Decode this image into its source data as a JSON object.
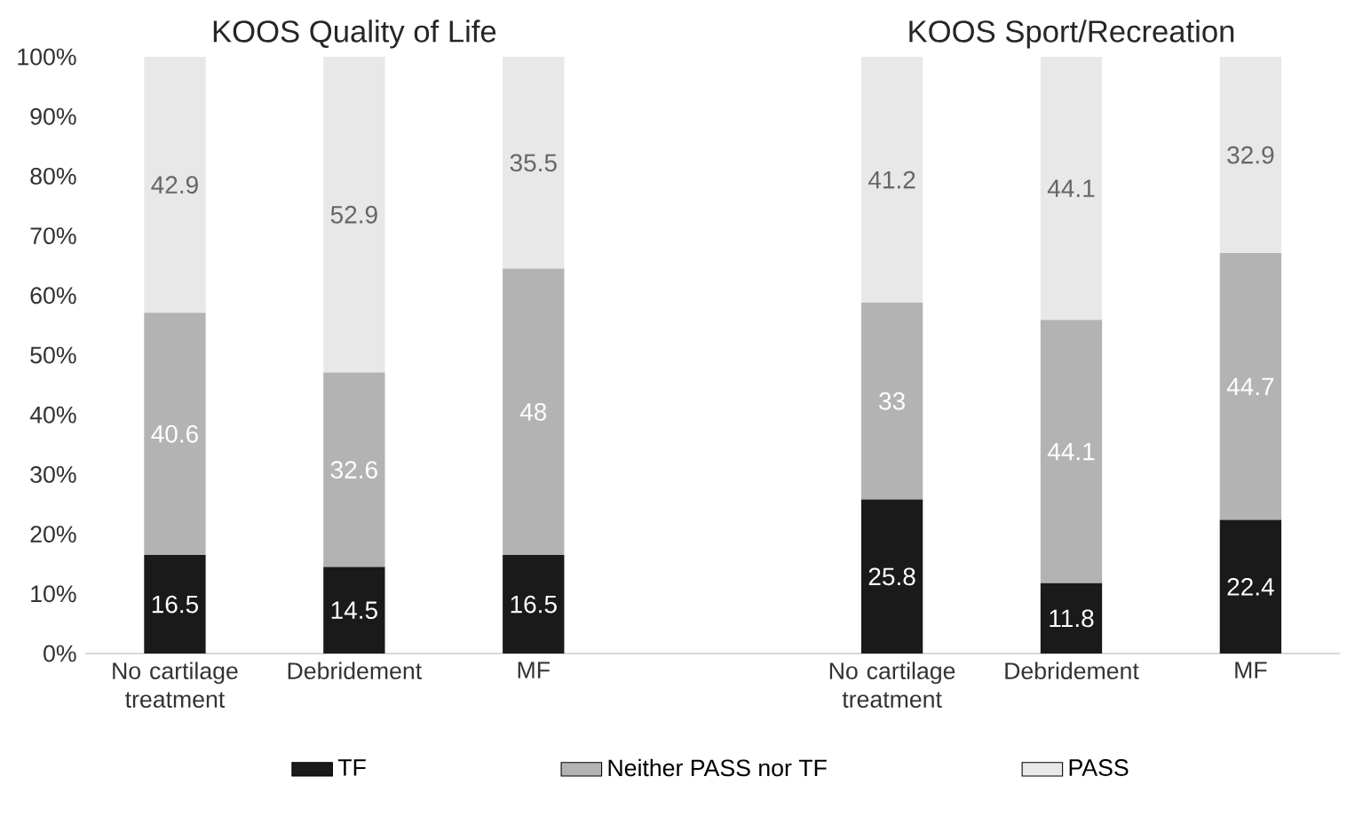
{
  "chart_data": {
    "type": "bar",
    "stacked": true,
    "annotations": [
      "KOOS Quality of Life",
      "KOOS Sport/Recreation"
    ],
    "categories": [
      "No cartilage treatment",
      "Debridement",
      "MF",
      null,
      "No cartilage treatment",
      "Debridement",
      "MF"
    ],
    "series": [
      {
        "name": "TF",
        "color": "#1a1a1a",
        "values": [
          16.5,
          14.5,
          16.5,
          null,
          25.8,
          11.8,
          22.4
        ]
      },
      {
        "name": "Neither PASS nor TF",
        "color": "#b3b3b3",
        "values": [
          40.6,
          32.6,
          48,
          null,
          33,
          44.1,
          44.7
        ]
      },
      {
        "name": "PASS",
        "color": "#e8e8e8",
        "values": [
          42.9,
          52.9,
          35.5,
          null,
          41.2,
          44.1,
          32.9
        ]
      }
    ],
    "ylim": [
      0,
      100
    ],
    "yticks": [
      {
        "value": 0,
        "label": "0%"
      },
      {
        "value": 10,
        "label": "10%"
      },
      {
        "value": 20,
        "label": "20%"
      },
      {
        "value": 30,
        "label": "30%"
      },
      {
        "value": 40,
        "label": "40%"
      },
      {
        "value": 50,
        "label": "50%"
      },
      {
        "value": 60,
        "label": "60%"
      },
      {
        "value": 70,
        "label": "70%"
      },
      {
        "value": 80,
        "label": "80%"
      },
      {
        "value": 90,
        "label": "90%"
      },
      {
        "value": 100,
        "label": "100%"
      }
    ],
    "data_labels": true,
    "legend": "bottom",
    "grid": false
  }
}
